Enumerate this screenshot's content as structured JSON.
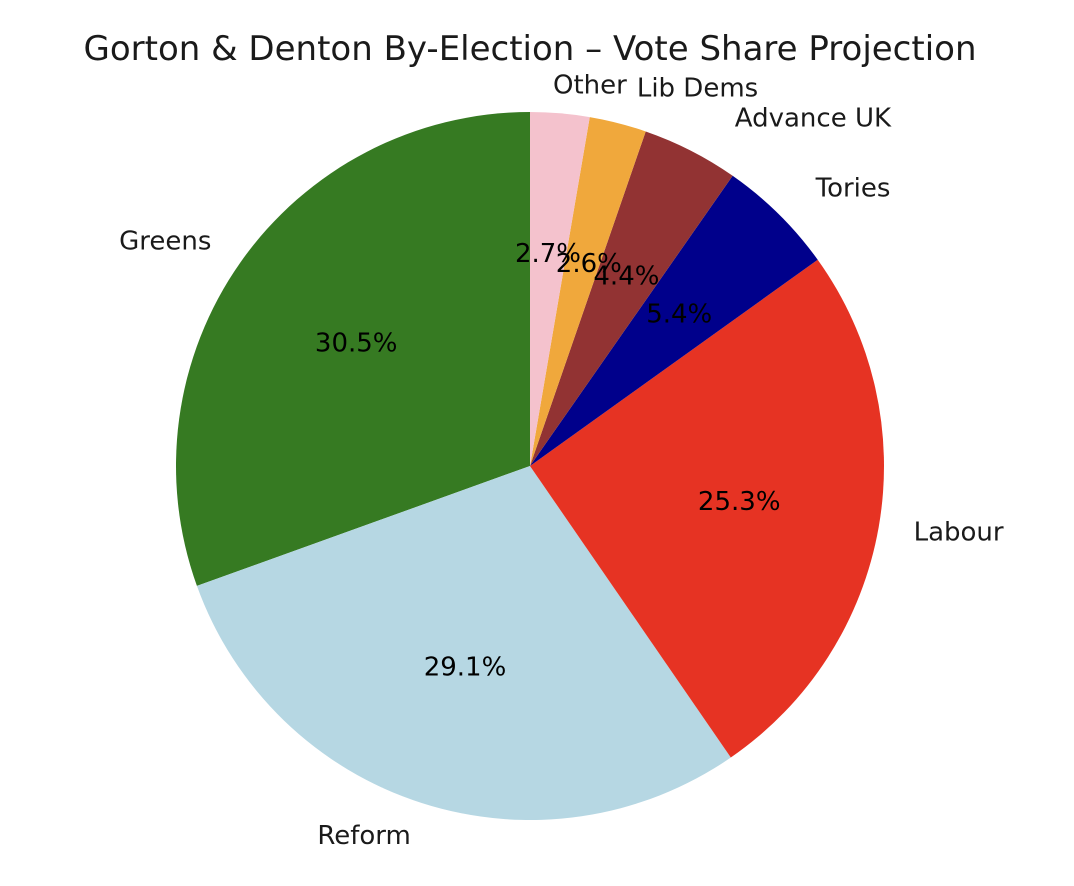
{
  "chart_data": {
    "type": "pie",
    "title": "Gorton & Denton By-Election – Vote Share Projection",
    "start_angle_deg": 90,
    "direction": "counterclockwise",
    "slices": [
      {
        "label": "Greens",
        "value": 30.5,
        "pct_text": "30.5%",
        "color": "#367a22"
      },
      {
        "label": "Reform",
        "value": 29.1,
        "pct_text": "29.1%",
        "color": "#b6d7e3"
      },
      {
        "label": "Labour",
        "value": 25.3,
        "pct_text": "25.3%",
        "color": "#e63323"
      },
      {
        "label": "Tories",
        "value": 5.4,
        "pct_text": "5.4%",
        "color": "#00008b"
      },
      {
        "label": "Advance UK",
        "value": 4.4,
        "pct_text": "4.4%",
        "color": "#923333"
      },
      {
        "label": "Lib Dems",
        "value": 2.6,
        "pct_text": "2.6%",
        "color": "#f0a83c"
      },
      {
        "label": "Other",
        "value": 2.7,
        "pct_text": "2.7%",
        "color": "#f4c2cd"
      }
    ]
  }
}
